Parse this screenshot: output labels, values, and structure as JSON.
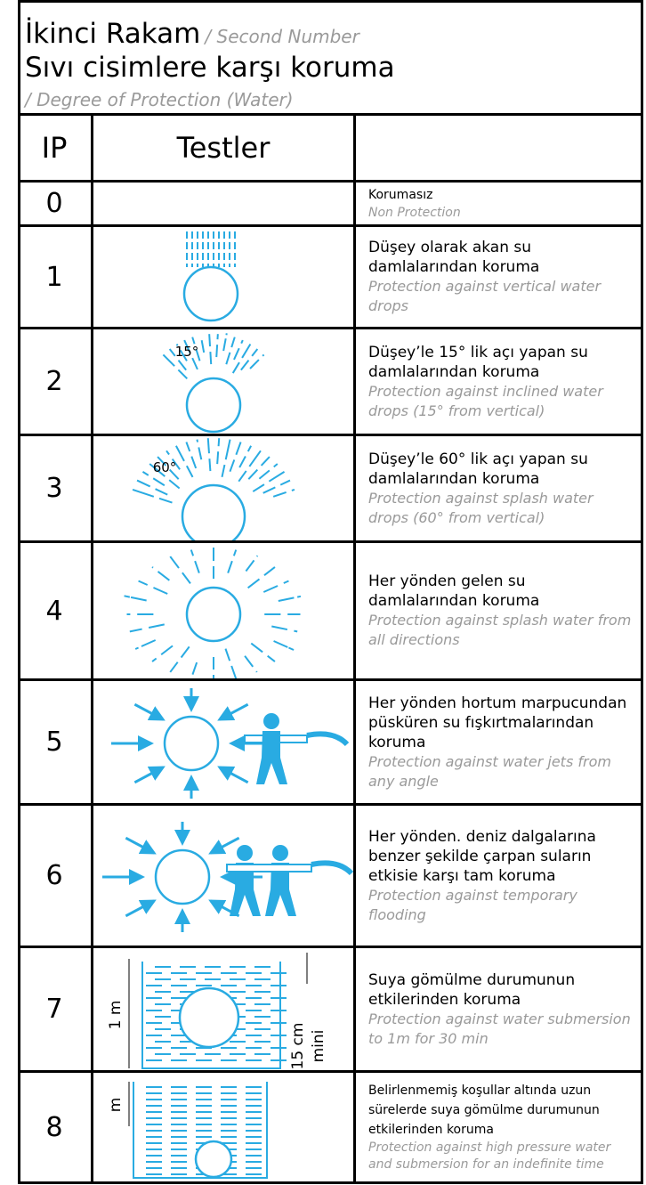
{
  "header": {
    "title": "İkinci Rakam",
    "title_en": "/ Second Number",
    "subtitle": "Sıvı cisimlere karşı koruma",
    "subtitle_en": "/ Degree of Protection (Water)"
  },
  "table": {
    "columns": [
      "IP",
      "Testler"
    ],
    "rows": [
      {
        "ip": "0",
        "tr": "Korumasız",
        "en": "Non Protection"
      },
      {
        "ip": "1",
        "tr": "Düşey olarak akan su damlalarından koruma",
        "en": "Protection against vertical water drops"
      },
      {
        "ip": "2",
        "tr": "Düşey’le 15° lik açı yapan su damlalarından koruma",
        "en": "Protection against inclined water drops (15° from vertical)",
        "figure_labels": [
          "15°"
        ]
      },
      {
        "ip": "3",
        "tr": "Düşey’le 60° lik açı yapan su damlalarından koruma",
        "en": "Protection against splash water drops (60° from vertical)",
        "figure_labels": [
          "60°"
        ]
      },
      {
        "ip": "4",
        "tr": "Her yönden gelen su damlalarından koruma",
        "en": "Protection against splash water from all directions"
      },
      {
        "ip": "5",
        "tr": "Her yönden hortum marpucundan püsküren su fışkırtmalarından koruma",
        "en": "Protection against water jets from any angle"
      },
      {
        "ip": "6",
        "tr": "Her yönden. deniz dalgalarına benzer şekilde çarpan suların etkisie karşı tam koruma",
        "en": "Protection against temporary flooding"
      },
      {
        "ip": "7",
        "tr": "Suya gömülme durumunun etkilerinden koruma",
        "en": "Protection against water submersion to 1m for 30 min",
        "figure_labels": [
          "1 m",
          "15 cm",
          "mini"
        ]
      },
      {
        "ip": "8",
        "tr": "Belirlenmemiş koşullar altında uzun sürelerde suya gömülme durumunun etkilerinden koruma",
        "en": "Protection against high pressure water and submersion for an indefinite time",
        "figure_labels": [
          "m"
        ]
      }
    ]
  }
}
